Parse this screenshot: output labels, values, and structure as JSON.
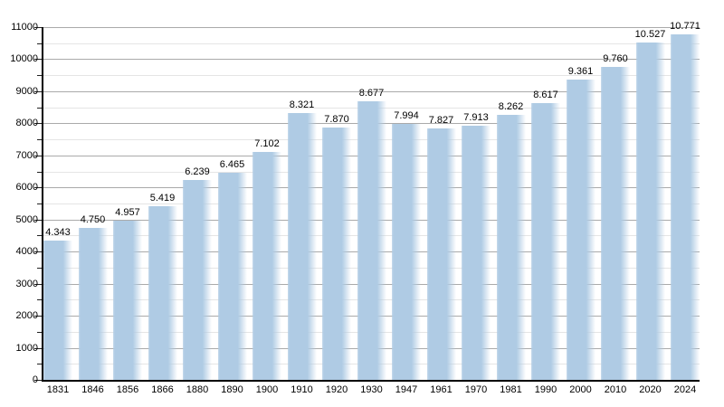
{
  "chart_data": {
    "type": "bar",
    "title": "",
    "xlabel": "",
    "ylabel": "",
    "categories": [
      "1831",
      "1846",
      "1856",
      "1866",
      "1880",
      "1890",
      "1900",
      "1910",
      "1920",
      "1930",
      "1947",
      "1961",
      "1970",
      "1981",
      "1990",
      "2000",
      "2010",
      "2020",
      "2024"
    ],
    "values": [
      4343,
      4750,
      4957,
      5419,
      6239,
      6465,
      7102,
      8321,
      7870,
      8677,
      7994,
      7827,
      7913,
      8262,
      8617,
      9361,
      9760,
      10527,
      10771
    ],
    "value_labels": [
      "4.343",
      "4.750",
      "4.957",
      "5.419",
      "6.239",
      "6.465",
      "7.102",
      "8.321",
      "7.870",
      "8.677",
      "7.994",
      "7.827",
      "7.913",
      "8.262",
      "8.617",
      "9.361",
      "9.760",
      "10.527",
      "10.771"
    ],
    "ylim": [
      0,
      11000
    ],
    "y_major_step": 1000,
    "y_minor_step": 500,
    "y_tick_labels": [
      "0",
      "1000",
      "2000",
      "3000",
      "4000",
      "5000",
      "6000",
      "7000",
      "8000",
      "9000",
      "10000",
      "11000"
    ],
    "grid": "on",
    "legend": "none",
    "bar_color": "#afcbe4",
    "major_grid_color": "#aaaaaa",
    "minor_grid_color": "#e5e5e5",
    "axis_color": "#000000",
    "text_color": "#000000"
  }
}
